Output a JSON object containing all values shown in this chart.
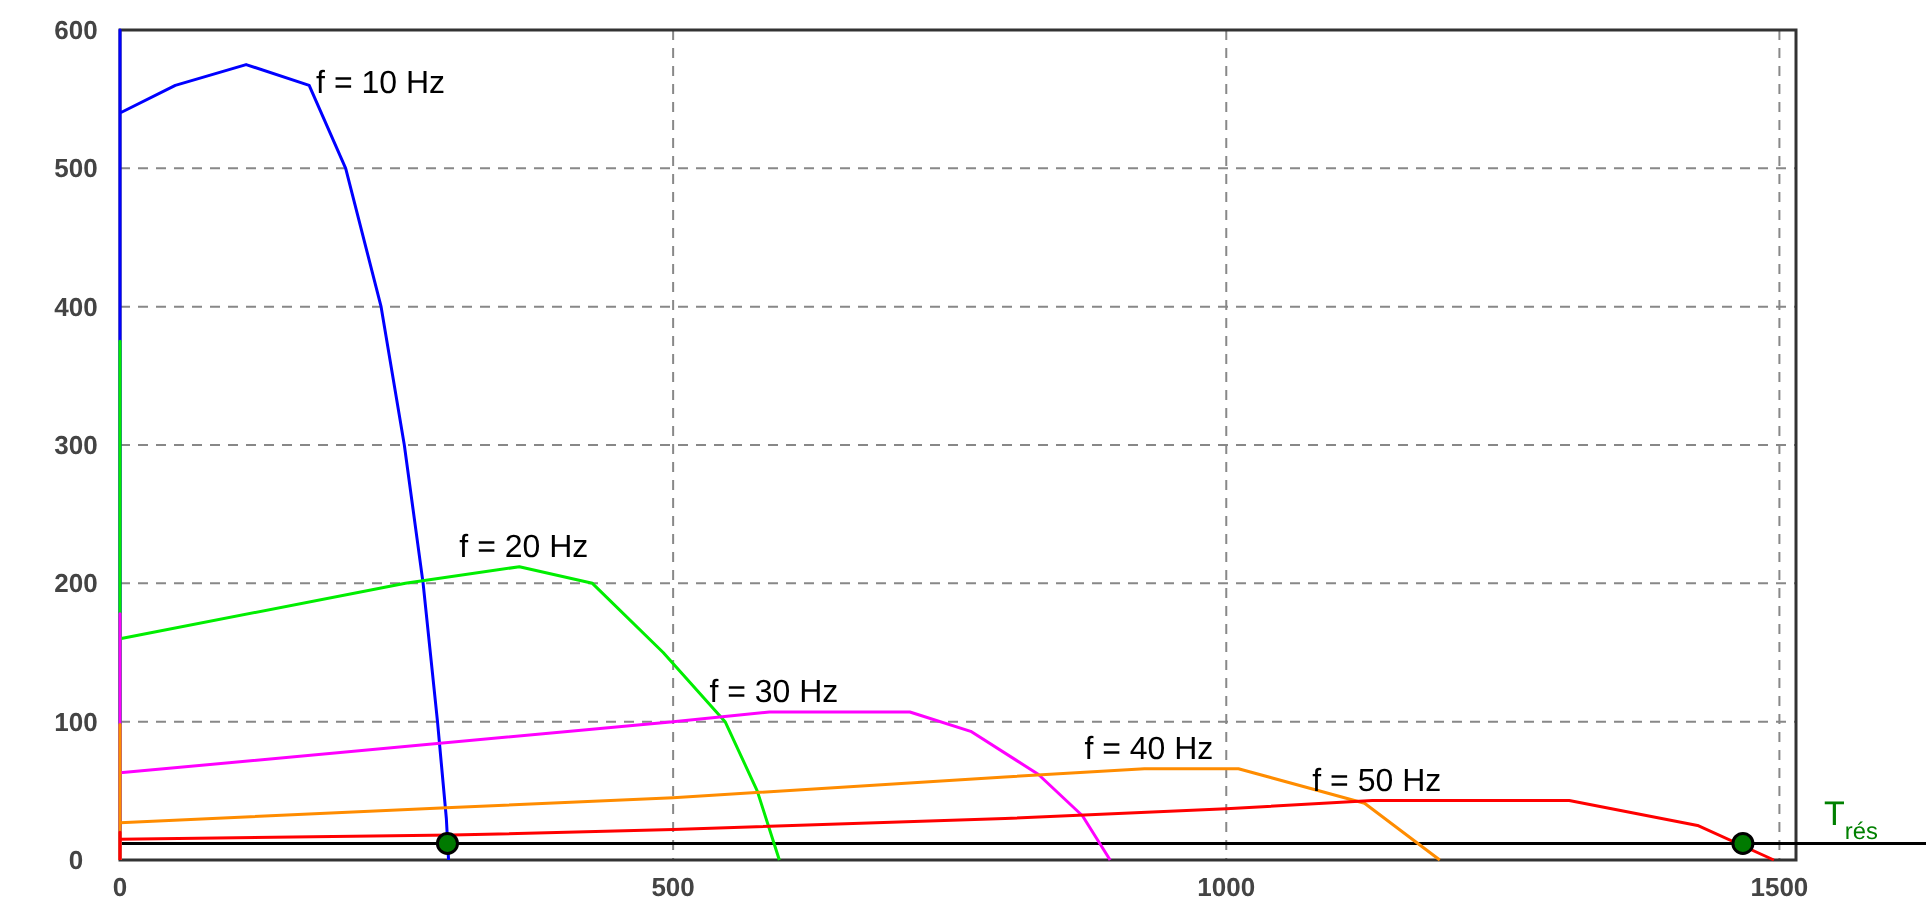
{
  "chart_data": {
    "type": "line",
    "xlim": [
      0,
      1515
    ],
    "ylim": [
      0,
      600
    ],
    "xticks": [
      0,
      500,
      1000,
      1500
    ],
    "yticks": [
      0,
      100,
      200,
      300,
      400,
      500,
      600
    ],
    "grid": true,
    "legend": false,
    "marker": "none",
    "line_style": "solid",
    "series": [
      {
        "name": "f = 10 Hz",
        "color": "#0000ff",
        "x": [
          0,
          0,
          0,
          50,
          114,
          171,
          204,
          236,
          257,
          274,
          287,
          295,
          297
        ],
        "values": [
          0,
          600,
          540,
          560,
          575,
          560,
          500,
          400,
          300,
          200,
          100,
          30,
          0
        ]
      },
      {
        "name": "f = 20 Hz",
        "color": "#00ee00",
        "x": [
          0,
          0,
          0,
          258,
          361,
          427,
          491,
          547,
          576,
          596
        ],
        "values": [
          0,
          375,
          160,
          200,
          212,
          200,
          150,
          100,
          50,
          0
        ]
      },
      {
        "name": "f = 30 Hz",
        "color": "#ff00ff",
        "x": [
          0,
          0,
          0,
          500,
          587,
          714,
          769,
          830,
          870,
          895
        ],
        "values": [
          0,
          178,
          63,
          100,
          107,
          107,
          93,
          62,
          32,
          0
        ]
      },
      {
        "name": "f = 40 Hz",
        "color": "#ff8c00",
        "x": [
          0,
          0,
          0,
          300,
          500,
          800,
          926,
          1011,
          1125,
          1193
        ],
        "values": [
          0,
          98,
          27,
          38,
          45,
          60,
          66,
          66,
          41,
          0
        ]
      },
      {
        "name": "f = 50 Hz",
        "color": "#ff0000",
        "x": [
          0,
          0,
          0,
          300,
          500,
          800,
          1000,
          1132,
          1310,
          1426,
          1495
        ],
        "values": [
          0,
          20,
          15,
          18,
          22,
          30,
          37,
          43,
          43,
          25,
          0
        ]
      },
      {
        "type": "scatter",
        "color": "#007a00",
        "marker": "circle",
        "x": [
          296,
          1467
        ],
        "values": [
          12,
          12
        ]
      }
    ],
    "ref_lines": [
      {
        "axis": "y",
        "value": 12,
        "label": "T$_{rés}$",
        "color": "#000000"
      }
    ]
  }
}
